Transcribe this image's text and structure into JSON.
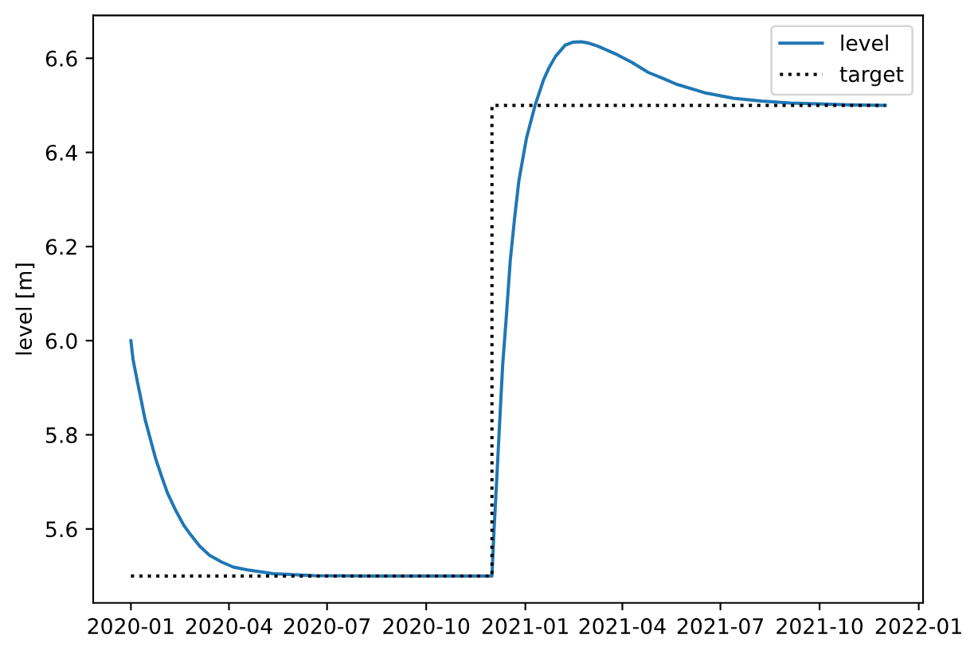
{
  "chart_data": {
    "type": "line",
    "ylabel": "level [m]",
    "xlim": [
      "2019-11-27",
      "2022-01-05"
    ],
    "xticks": [
      "2020-01",
      "2020-04",
      "2020-07",
      "2020-10",
      "2021-01",
      "2021-04",
      "2021-07",
      "2021-10",
      "2022-01"
    ],
    "ylim": [
      5.443,
      6.691
    ],
    "yticks": [
      5.6,
      5.8,
      {
        "value": 6,
        "label": "6.0"
      },
      6.2,
      6.4,
      6.6
    ],
    "legend": "top right",
    "series": [
      {
        "name": "level",
        "color": "#1f77b4",
        "line_style": "solid",
        "x": [
          "2020-01-01",
          "2020-01-03",
          "2020-01-07",
          "2020-01-10",
          "2020-01-14",
          "2020-01-18",
          "2020-01-24",
          "2020-01-29",
          "2020-02-04",
          "2020-02-11",
          "2020-02-19",
          "2020-02-26",
          "2020-03-05",
          "2020-03-14",
          "2020-03-25",
          "2020-04-05",
          "2020-04-18",
          "2020-05-12",
          "2020-06-19",
          "2020-08-15",
          "2020-10-15",
          "2020-12-01",
          "2020-12-03",
          "2020-12-06",
          "2020-12-08",
          "2020-12-11",
          "2020-12-14",
          "2020-12-18",
          "2020-12-22",
          "2020-12-26",
          "2021-01-02",
          "2021-01-10",
          "2021-01-18",
          "2021-01-23",
          "2021-01-29",
          "2021-02-07",
          "2021-02-14",
          "2021-02-22",
          "2021-03-01",
          "2021-03-09",
          "2021-03-25",
          "2021-04-10",
          "2021-04-25",
          "2021-05-08",
          "2021-05-21",
          "2021-06-16",
          "2021-07-13",
          "2021-08-08",
          "2021-09-04",
          "2021-09-30",
          "2021-10-27",
          "2021-12-01"
        ],
        "values": [
          6.0,
          5.96,
          5.913,
          5.88,
          5.834,
          5.8,
          5.749,
          5.715,
          5.676,
          5.642,
          5.608,
          5.586,
          5.563,
          5.544,
          5.53,
          5.519,
          5.513,
          5.505,
          5.501,
          5.5,
          5.5,
          5.5,
          5.6,
          5.73,
          5.82,
          5.95,
          6.04,
          6.17,
          6.26,
          6.34,
          6.43,
          6.5,
          6.555,
          6.58,
          6.604,
          6.628,
          6.634,
          6.635,
          6.632,
          6.626,
          6.61,
          6.591,
          6.57,
          6.558,
          6.545,
          6.527,
          6.515,
          6.509,
          6.505,
          6.503,
          6.501,
          6.5
        ]
      },
      {
        "name": "target",
        "type": "step",
        "color": "#000000",
        "line_style": "dotted",
        "x": [
          "2020-01-01",
          "2020-12-01",
          "2021-12-01"
        ],
        "values": [
          5.5,
          6.5,
          6.5
        ]
      }
    ]
  }
}
